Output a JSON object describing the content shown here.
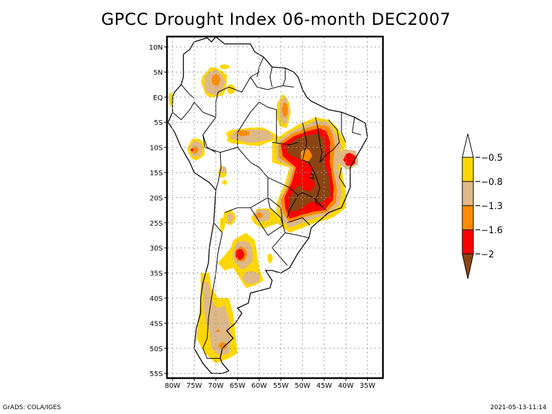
{
  "title": "GPCC Drought Index 06-month DEC2007",
  "map": {
    "region": "South America",
    "projection": "lat-lon",
    "lon_range": [
      -81,
      -31
    ],
    "lat_range": [
      -56,
      12
    ],
    "x_ticks": [
      "80W",
      "75W",
      "70W",
      "65W",
      "60W",
      "55W",
      "50W",
      "45W",
      "40W",
      "35W"
    ],
    "x_tick_values": [
      -80,
      -75,
      -70,
      -65,
      -60,
      -55,
      -50,
      -45,
      -40,
      -35
    ],
    "y_ticks": [
      "10N",
      "5N",
      "EQ",
      "5S",
      "10S",
      "15S",
      "20S",
      "25S",
      "30S",
      "35S",
      "40S",
      "45S",
      "50S",
      "55S"
    ],
    "y_tick_values": [
      10,
      5,
      0,
      -5,
      -10,
      -15,
      -20,
      -25,
      -30,
      -35,
      -40,
      -45,
      -50,
      -55
    ],
    "grid": "dotted"
  },
  "legend": {
    "labels": [
      "-0.5",
      "-0.8",
      "-1.3",
      "-1.6",
      "-2"
    ],
    "colors": {
      "above_-0.5": "#ffffff",
      "-0.8_to_-0.5": "#ffd700",
      "-1.3_to_-0.8": "#deb887",
      "-1.6_to_-1.3": "#ff8c00",
      "-2_to_-1.6": "#ff0000",
      "below_-2": "#8b4513"
    },
    "bins": [
      {
        "range": "> -0.5",
        "color": "#ffffff"
      },
      {
        "range": "-0.8 to -0.5",
        "color": "#ffd700"
      },
      {
        "range": "-1.3 to -0.8",
        "color": "#deb887"
      },
      {
        "range": "-1.6 to -1.3",
        "color": "#ff8c00"
      },
      {
        "range": "-2 to -1.6",
        "color": "#ff0000"
      },
      {
        "range": "< -2",
        "color": "#8b4513"
      }
    ]
  },
  "drought_regions": [
    {
      "name": "central-east-brazil",
      "lon": -47,
      "lat": -14,
      "max_class": "< -2"
    },
    {
      "name": "southeast-brazil",
      "lon": -50,
      "lat": -21,
      "max_class": "< -2"
    },
    {
      "name": "northeast-brazil-coast",
      "lon": -39,
      "lat": -12,
      "max_class": "-2 to -1.6"
    },
    {
      "name": "argentina-north",
      "lon": -64,
      "lat": -31,
      "max_class": "-2 to -1.6"
    },
    {
      "name": "peru",
      "lon": -74,
      "lat": -10,
      "max_class": "-2 to -1.6"
    },
    {
      "name": "colombia",
      "lon": -71,
      "lat": 3,
      "max_class": "-1.6 to -1.3"
    },
    {
      "name": "amazon-west",
      "lon": -62,
      "lat": -7,
      "max_class": "-1.6 to -1.3"
    },
    {
      "name": "para-north",
      "lon": -54,
      "lat": -2,
      "max_class": "-1.6 to -1.3"
    },
    {
      "name": "patagonia",
      "lon": -67,
      "lat": -48,
      "max_class": "-1.6 to -1.3"
    }
  ],
  "footer": {
    "left": "GrADS: COLA/IGES",
    "right": "2021-05-13-11:14"
  }
}
